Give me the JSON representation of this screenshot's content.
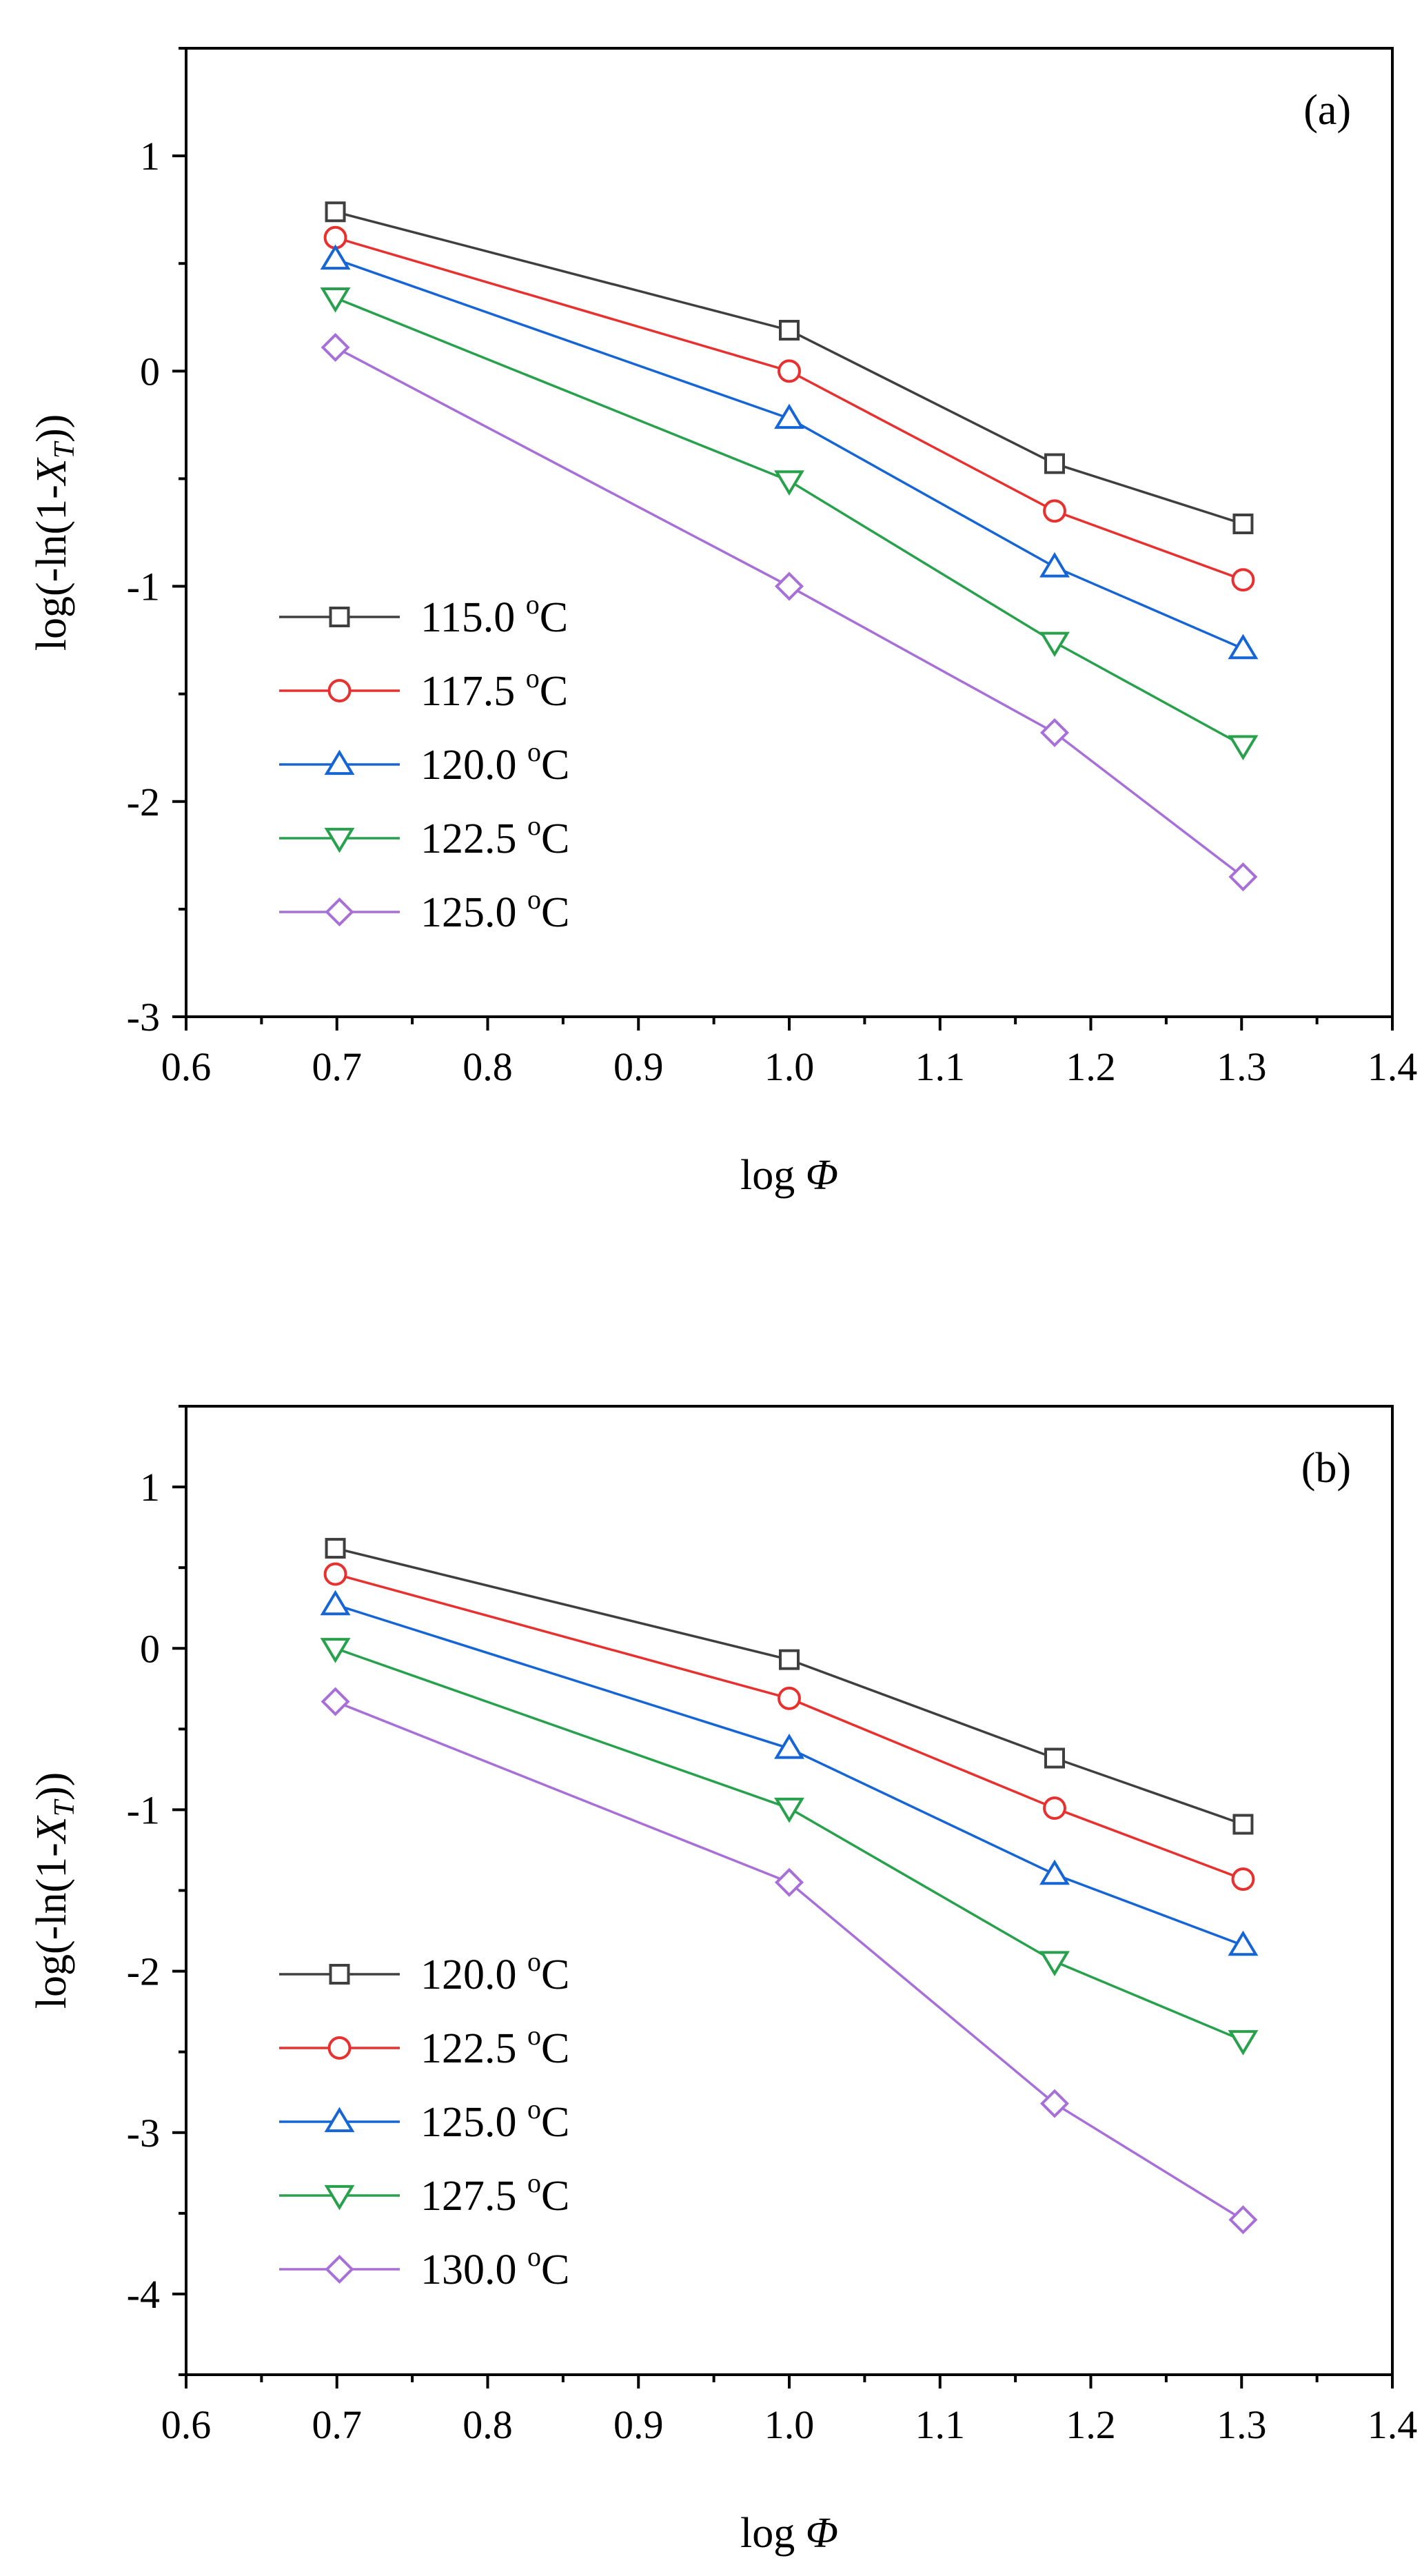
{
  "chart_data": [
    {
      "type": "line",
      "panel_label": "(a)",
      "xlabel_main": "log ",
      "xlabel_symbol": "Φ",
      "ylabel_prefix": "log(-ln(1-",
      "ylabel_var": "X",
      "ylabel_sub": "T",
      "ylabel_suffix": "))",
      "xlim": [
        0.6,
        1.4
      ],
      "ylim": [
        -3,
        1.5
      ],
      "x_ticks": [
        0.6,
        0.7,
        0.8,
        0.9,
        1.0,
        1.1,
        1.2,
        1.3,
        1.4
      ],
      "x_tick_labels": [
        "0.6",
        "0.7",
        "0.8",
        "0.9",
        "1.0",
        "1.1",
        "1.2",
        "1.3",
        "1.4"
      ],
      "y_ticks": [
        -3,
        -2,
        -1,
        0,
        1
      ],
      "y_tick_labels": [
        "-3",
        "-2",
        "-1",
        "0",
        "1"
      ],
      "x": [
        0.699,
        1.0,
        1.176,
        1.301
      ],
      "legend_position": "lower-left",
      "series": [
        {
          "name": "115.0 ",
          "unit": "C",
          "deg": "o",
          "color": "#3f3f3f",
          "marker": "square",
          "values": [
            0.74,
            0.19,
            -0.43,
            -0.71
          ]
        },
        {
          "name": "117.5 ",
          "unit": "C",
          "deg": "o",
          "color": "#e8312f",
          "marker": "circle",
          "values": [
            0.62,
            0.0,
            -0.65,
            -0.97
          ]
        },
        {
          "name": "120.0 ",
          "unit": "C",
          "deg": "o",
          "color": "#1565d6",
          "marker": "triangle-up",
          "values": [
            0.52,
            -0.22,
            -0.91,
            -1.29
          ]
        },
        {
          "name": "122.5 ",
          "unit": "C",
          "deg": "o",
          "color": "#27a14b",
          "marker": "triangle-down",
          "values": [
            0.34,
            -0.51,
            -1.26,
            -1.74
          ]
        },
        {
          "name": "125.0 ",
          "unit": "C",
          "deg": "o",
          "color": "#a86fd9",
          "marker": "diamond",
          "values": [
            0.11,
            -1.0,
            -1.68,
            -2.35
          ]
        }
      ]
    },
    {
      "type": "line",
      "panel_label": "(b)",
      "xlabel_main": "log ",
      "xlabel_symbol": "Φ",
      "ylabel_prefix": "log(-ln(1-",
      "ylabel_var": "X",
      "ylabel_sub": "T",
      "ylabel_suffix": "))",
      "xlim": [
        0.6,
        1.4
      ],
      "ylim": [
        -4.5,
        1.5
      ],
      "x_ticks": [
        0.6,
        0.7,
        0.8,
        0.9,
        1.0,
        1.1,
        1.2,
        1.3,
        1.4
      ],
      "x_tick_labels": [
        "0.6",
        "0.7",
        "0.8",
        "0.9",
        "1.0",
        "1.1",
        "1.2",
        "1.3",
        "1.4"
      ],
      "y_ticks": [
        -4,
        -3,
        -2,
        -1,
        0,
        1
      ],
      "y_tick_labels": [
        "-4",
        "-3",
        "-2",
        "-1",
        "0",
        "1"
      ],
      "x": [
        0.699,
        1.0,
        1.176,
        1.301
      ],
      "legend_position": "lower-left",
      "series": [
        {
          "name": "120.0 ",
          "unit": "C",
          "deg": "o",
          "color": "#3f3f3f",
          "marker": "square",
          "values": [
            0.62,
            -0.07,
            -0.68,
            -1.09
          ]
        },
        {
          "name": "122.5 ",
          "unit": "C",
          "deg": "o",
          "color": "#e8312f",
          "marker": "circle",
          "values": [
            0.46,
            -0.31,
            -0.99,
            -1.43
          ]
        },
        {
          "name": "125.0 ",
          "unit": "C",
          "deg": "o",
          "color": "#1565d6",
          "marker": "triangle-up",
          "values": [
            0.27,
            -0.62,
            -1.4,
            -1.84
          ]
        },
        {
          "name": "127.5 ",
          "unit": "C",
          "deg": "o",
          "color": "#27a14b",
          "marker": "triangle-down",
          "values": [
            0.0,
            -0.99,
            -1.94,
            -2.43
          ]
        },
        {
          "name": "130.0 ",
          "unit": "C",
          "deg": "o",
          "color": "#a86fd9",
          "marker": "diamond",
          "values": [
            -0.33,
            -1.45,
            -2.82,
            -3.54
          ]
        }
      ]
    }
  ]
}
